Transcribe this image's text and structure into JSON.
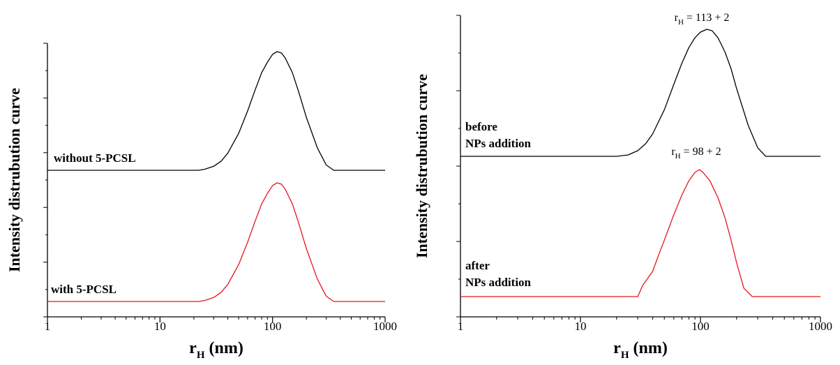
{
  "chart_data": [
    {
      "type": "line",
      "title": "",
      "xlabel": {
        "main": "r",
        "sub": "H",
        "rest": " (nm)"
      },
      "ylabel": "Intensity distrubution curve",
      "xscale": "log",
      "xlim": [
        1,
        1000
      ],
      "xticks": [
        1,
        10,
        100,
        1000
      ],
      "xtick_labels": [
        "1",
        "10",
        "100",
        "1000"
      ],
      "y_tick_count": 11,
      "yticks_labeled": false,
      "grid": false,
      "series": [
        {
          "label": "without 5-PCSL",
          "color": "#000000",
          "offset": 1,
          "x": [
            1,
            22,
            25,
            30,
            35,
            40,
            50,
            60,
            70,
            80,
            90,
            100,
            110,
            120,
            130,
            150,
            170,
            200,
            250,
            300,
            350,
            1000
          ],
          "y": [
            0,
            0,
            0.004,
            0.015,
            0.035,
            0.065,
            0.14,
            0.225,
            0.305,
            0.37,
            0.41,
            0.44,
            0.45,
            0.445,
            0.425,
            0.37,
            0.3,
            0.2,
            0.085,
            0.02,
            0,
            0
          ]
        },
        {
          "label": "with 5-PCSL",
          "color": "#e8141c",
          "offset": 0,
          "x": [
            1,
            22,
            25,
            30,
            35,
            40,
            50,
            60,
            70,
            80,
            90,
            100,
            110,
            120,
            130,
            150,
            170,
            200,
            250,
            300,
            350,
            1000
          ],
          "y": [
            0,
            0,
            0.004,
            0.015,
            0.035,
            0.065,
            0.14,
            0.225,
            0.305,
            0.37,
            0.41,
            0.44,
            0.45,
            0.445,
            0.425,
            0.37,
            0.3,
            0.2,
            0.085,
            0.02,
            0,
            0
          ]
        }
      ]
    },
    {
      "type": "line",
      "title": "",
      "xlabel": {
        "main": "r",
        "sub": "H",
        "rest": " (nm)"
      },
      "ylabel": "Intensity distrubution curve",
      "xscale": "log",
      "xlim": [
        1,
        1000
      ],
      "xticks": [
        1,
        10,
        100,
        1000
      ],
      "xtick_labels": [
        "1",
        "10",
        "100",
        "1000"
      ],
      "y_tick_count": 9,
      "yticks_labeled": false,
      "grid": false,
      "series": [
        {
          "label": [
            "before",
            "NPs addition"
          ],
          "color": "#000000",
          "offset": 1,
          "annotation": {
            "main": "r",
            "sub": "H",
            "rest": " = 113 + 2"
          },
          "x": [
            1,
            20,
            25,
            30,
            35,
            40,
            50,
            60,
            70,
            80,
            90,
            100,
            113,
            125,
            140,
            160,
            180,
            200,
            250,
            300,
            350,
            1000
          ],
          "y": [
            0,
            0,
            0.005,
            0.02,
            0.045,
            0.08,
            0.165,
            0.255,
            0.33,
            0.385,
            0.42,
            0.44,
            0.45,
            0.445,
            0.42,
            0.37,
            0.31,
            0.24,
            0.11,
            0.03,
            0,
            0
          ]
        },
        {
          "label": [
            "after",
            "NPs addition"
          ],
          "color": "#e8141c",
          "offset": 0,
          "annotation": {
            "main": "r",
            "sub": "H",
            "rest": " = 98 + 2"
          },
          "x": [
            1,
            30,
            33,
            35,
            40,
            45,
            50,
            60,
            70,
            80,
            90,
            98,
            105,
            120,
            140,
            160,
            180,
            200,
            230,
            270,
            1000
          ],
          "y": [
            0,
            0,
            0.04,
            0.055,
            0.09,
            0.15,
            0.2,
            0.29,
            0.36,
            0.41,
            0.44,
            0.45,
            0.44,
            0.41,
            0.35,
            0.28,
            0.2,
            0.12,
            0.03,
            0,
            0
          ]
        }
      ]
    }
  ]
}
